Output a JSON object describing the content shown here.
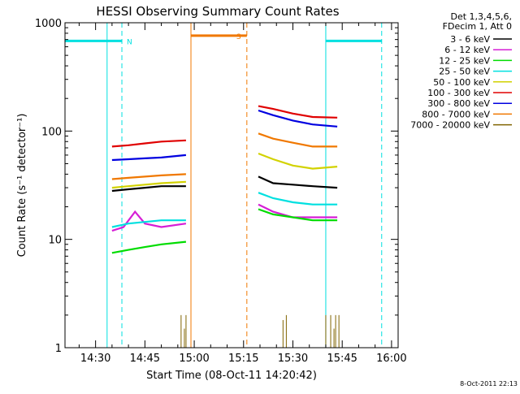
{
  "chart_data": {
    "type": "line",
    "title": "HESSI Observing Summary Count Rates",
    "xlabel": "Start Time (08-Oct-11 14:20:42)",
    "ylabel": "Count Rate (s⁻¹ detector⁻¹)",
    "xscale": "time",
    "yscale": "log",
    "xlim": [
      "14:20:42",
      "16:02:00"
    ],
    "ylim": [
      1,
      1000
    ],
    "x_ticks": [
      "14:30",
      "14:45",
      "15:00",
      "15:15",
      "15:30",
      "15:45",
      "16:00"
    ],
    "y_ticks": [
      "1",
      "10",
      "100",
      "1000"
    ],
    "grid": false,
    "legend_header": [
      "Det 1,3,4,5,6,",
      "FDecim 1, Att 0"
    ],
    "legend_position": "right of plot",
    "series": [
      {
        "name": "3 - 6 keV",
        "color": "#000000",
        "x": [
          "14:35:00",
          "14:40:00",
          "14:45:00",
          "14:50:00",
          "14:57:30",
          "15:19:30",
          "15:24:00",
          "15:30:00",
          "15:36:00",
          "15:43:30"
        ],
        "y": [
          28,
          29,
          30,
          31,
          31,
          38,
          33,
          32,
          31,
          30
        ]
      },
      {
        "name": "6 - 12 keV",
        "color": "#d61ed6",
        "x": [
          "14:35:00",
          "14:38:30",
          "14:42:00",
          "14:45:00",
          "14:50:00",
          "14:57:30",
          "15:19:30",
          "15:24:00",
          "15:30:00",
          "15:36:00",
          "15:43:30"
        ],
        "y": [
          12,
          13,
          18,
          14,
          13,
          14,
          21,
          18,
          16,
          16,
          16
        ]
      },
      {
        "name": "12 - 25 keV",
        "color": "#00dc00",
        "x": [
          "14:35:00",
          "14:40:00",
          "14:45:00",
          "14:50:00",
          "14:57:30",
          "15:19:30",
          "15:24:00",
          "15:30:00",
          "15:36:00",
          "15:43:30"
        ],
        "y": [
          7.5,
          8,
          8.5,
          9,
          9.5,
          19,
          17,
          16,
          15,
          15
        ]
      },
      {
        "name": "25 - 50 keV",
        "color": "#00e0e0",
        "x": [
          "14:35:00",
          "14:40:00",
          "14:45:00",
          "14:50:00",
          "14:57:30",
          "15:19:30",
          "15:24:00",
          "15:30:00",
          "15:36:00",
          "15:43:30"
        ],
        "y": [
          13,
          14,
          14.5,
          15,
          15,
          27,
          24,
          22,
          21,
          21
        ]
      },
      {
        "name": "50 - 100 keV",
        "color": "#d2d200",
        "x": [
          "14:35:00",
          "14:40:00",
          "14:45:00",
          "14:50:00",
          "14:57:30",
          "15:19:30",
          "15:24:00",
          "15:30:00",
          "15:36:00",
          "15:43:30"
        ],
        "y": [
          30,
          31,
          32,
          33,
          34,
          62,
          55,
          48,
          45,
          47
        ]
      },
      {
        "name": "100 - 300 keV",
        "color": "#e00000",
        "x": [
          "14:35:00",
          "14:40:00",
          "14:45:00",
          "14:50:00",
          "14:57:30",
          "15:19:30",
          "15:24:00",
          "15:30:00",
          "15:36:00",
          "15:43:30"
        ],
        "y": [
          72,
          74,
          77,
          80,
          82,
          170,
          160,
          145,
          135,
          133
        ]
      },
      {
        "name": "300 - 800 keV",
        "color": "#0000e0",
        "x": [
          "14:35:00",
          "14:40:00",
          "14:45:00",
          "14:50:00",
          "14:57:30",
          "15:19:30",
          "15:24:00",
          "15:30:00",
          "15:36:00",
          "15:43:30"
        ],
        "y": [
          54,
          55,
          56,
          57,
          60,
          155,
          140,
          125,
          115,
          110
        ]
      },
      {
        "name": "800 - 7000 keV",
        "color": "#f07800",
        "x": [
          "14:35:00",
          "14:40:00",
          "14:45:00",
          "14:50:00",
          "14:57:30",
          "15:19:30",
          "15:24:00",
          "15:30:00",
          "15:36:00",
          "15:43:30"
        ],
        "y": [
          36,
          37,
          38,
          39,
          40,
          95,
          85,
          78,
          72,
          72
        ]
      },
      {
        "name": "7000 - 20000 keV",
        "color": "#806400",
        "x": [
          "14:56:00",
          "14:57:00",
          "14:57:30",
          "15:27:00",
          "15:28:00",
          "15:40:00",
          "15:41:30",
          "15:42:30",
          "15:43:00",
          "15:44:00"
        ],
        "y": [
          2,
          1.5,
          2,
          1.8,
          2,
          2,
          2,
          1.5,
          2,
          2
        ]
      }
    ],
    "flags": [
      {
        "label": "N",
        "color": "#00e0e0",
        "y": 680,
        "segments": [
          [
            "14:20:42",
            "14:38:00"
          ],
          [
            "15:40:00",
            "15:57:00"
          ]
        ]
      },
      {
        "label": "S",
        "color": "#f07800",
        "y": 760,
        "segments": [
          [
            "14:59:00",
            "15:16:00"
          ]
        ]
      }
    ],
    "vertical_markers": [
      {
        "x": "14:33:30",
        "color": "#00e0e0",
        "style": "solid"
      },
      {
        "x": "14:38:00",
        "color": "#00e0e0",
        "style": "dashed"
      },
      {
        "x": "14:59:00",
        "color": "#f07800",
        "style": "solid"
      },
      {
        "x": "15:16:00",
        "color": "#f07800",
        "style": "dashed"
      },
      {
        "x": "15:40:00",
        "color": "#00e0e0",
        "style": "solid"
      },
      {
        "x": "15:57:00",
        "color": "#00e0e0",
        "style": "dashed"
      }
    ],
    "footer": "8-Oct-2011 22:13"
  }
}
